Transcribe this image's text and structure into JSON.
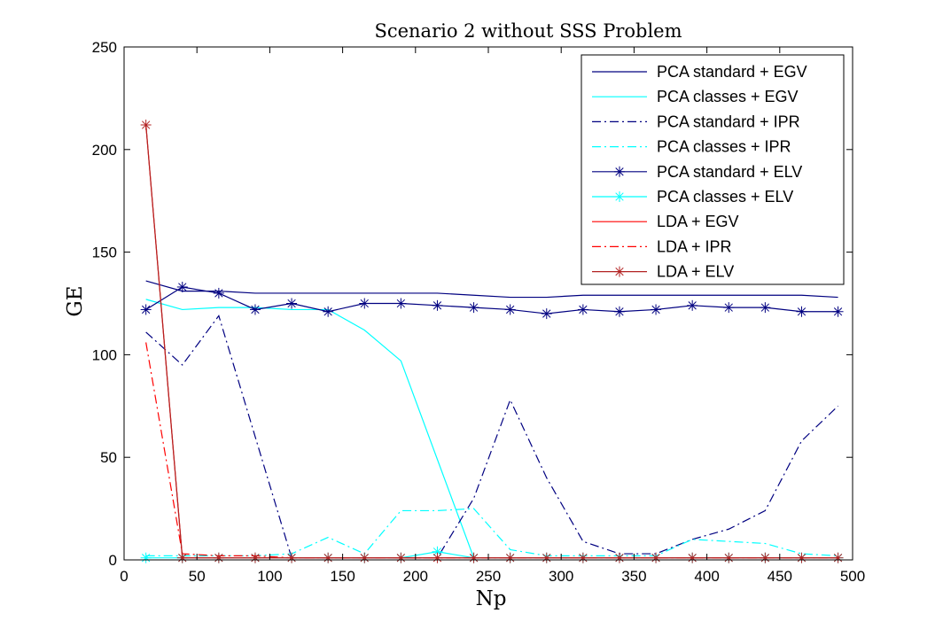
{
  "chart_data": {
    "type": "line",
    "title": "Scenario 2 without SSS Problem",
    "xlabel": "Np",
    "ylabel": "GE",
    "xlim": [
      0,
      500
    ],
    "ylim": [
      0,
      250
    ],
    "xticks": [
      0,
      50,
      100,
      150,
      200,
      250,
      300,
      350,
      400,
      450,
      500
    ],
    "yticks": [
      0,
      50,
      100,
      150,
      200,
      250
    ],
    "grid": false,
    "legend_position": "top-right",
    "x": [
      15,
      40,
      65,
      90,
      115,
      140,
      165,
      190,
      215,
      240,
      265,
      290,
      315,
      340,
      365,
      390,
      415,
      440,
      465,
      490
    ],
    "series": [
      {
        "name": "PCA standard + EGV",
        "color": "#000080",
        "dash": "solid",
        "marker": "none",
        "values": [
          136,
          131,
          131,
          130,
          130,
          130,
          130,
          130,
          130,
          129,
          128,
          128,
          129,
          129,
          129,
          129,
          129,
          129,
          129,
          128
        ]
      },
      {
        "name": "PCA classes + EGV",
        "color": "#00ffff",
        "dash": "solid",
        "marker": "none",
        "values": [
          127,
          122,
          123,
          123,
          122,
          122,
          112,
          97,
          49,
          1,
          1,
          1,
          1,
          1,
          1,
          1,
          1,
          1,
          1,
          1
        ]
      },
      {
        "name": "PCA standard + IPR",
        "color": "#000080",
        "dash": "dashdot",
        "marker": "none",
        "values": [
          111,
          95,
          119,
          60,
          1,
          1,
          1,
          1,
          1,
          30,
          78,
          40,
          9,
          3,
          3,
          10,
          15,
          24,
          58,
          75
        ]
      },
      {
        "name": "PCA classes + IPR",
        "color": "#00ffff",
        "dash": "dashdot",
        "marker": "none",
        "values": [
          2,
          2,
          2,
          2,
          3,
          11,
          3,
          24,
          24,
          25,
          5,
          2,
          2,
          2,
          2,
          10,
          9,
          8,
          3,
          2
        ]
      },
      {
        "name": "PCA standard + ELV",
        "color": "#000080",
        "dash": "solid",
        "marker": "star",
        "values": [
          122,
          133,
          130,
          122,
          125,
          121,
          125,
          125,
          124,
          123,
          122,
          120,
          122,
          121,
          122,
          124,
          123,
          123,
          121,
          121
        ]
      },
      {
        "name": "PCA classes + ELV",
        "color": "#00ffff",
        "dash": "solid",
        "marker": "star",
        "values": [
          1,
          1,
          1,
          1,
          1,
          1,
          1,
          1,
          4,
          1,
          1,
          1,
          1,
          1,
          1,
          1,
          1,
          1,
          1,
          1
        ]
      },
      {
        "name": "LDA + EGV",
        "color": "#ff0000",
        "dash": "solid",
        "marker": "none",
        "values": [
          212,
          1,
          1,
          1,
          1,
          1,
          1,
          1,
          1,
          1,
          1,
          1,
          1,
          1,
          1,
          1,
          1,
          1,
          1,
          1
        ]
      },
      {
        "name": "LDA + IPR",
        "color": "#ff0000",
        "dash": "dashdot",
        "marker": "none",
        "values": [
          106,
          3,
          2,
          2,
          1,
          1,
          1,
          1,
          1,
          1,
          1,
          1,
          1,
          1,
          1,
          1,
          1,
          1,
          1,
          1
        ]
      },
      {
        "name": "LDA + ELV",
        "color": "#b22222",
        "dash": "solid",
        "marker": "star",
        "values": [
          212,
          1,
          1,
          1,
          1,
          1,
          1,
          1,
          1,
          1,
          1,
          1,
          1,
          1,
          1,
          1,
          1,
          1,
          1,
          1
        ]
      }
    ]
  }
}
